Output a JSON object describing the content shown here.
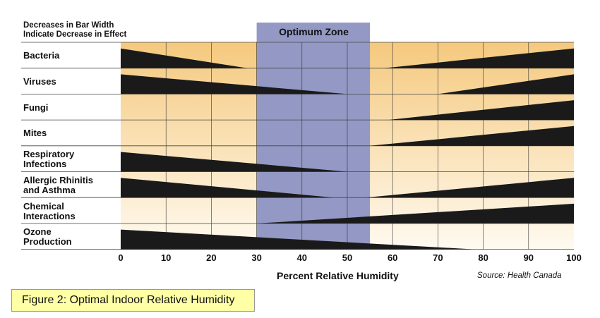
{
  "note": [
    "Decreases in Bar Width",
    "Indicate Decrease in Effect"
  ],
  "zone_label": "Optimum Zone",
  "x_label": "Percent Relative Humidity",
  "source": "Source: Health Canada",
  "caption": "Figure 2:  Optimal Indoor Relative Humidity",
  "colors": {
    "wedge": "#1a1a1a",
    "zone": "#9399c4",
    "band_dark": "#f5c97e",
    "band_light": "#fffaf0",
    "gridline": "#333333"
  },
  "chart_data": {
    "type": "bar",
    "title": "",
    "xlabel": "Percent Relative Humidity",
    "xlim": [
      0,
      100
    ],
    "xticks": [
      "0",
      "10",
      "20",
      "30",
      "40",
      "50",
      "60",
      "70",
      "80",
      "90",
      "100"
    ],
    "optimum_zone": [
      30,
      55
    ],
    "categories": [
      {
        "label": "Bacteria",
        "low_end": 28,
        "high_start": 58
      },
      {
        "label": "Viruses",
        "low_end": 50,
        "high_start": 70
      },
      {
        "label": "Fungi",
        "low_end": null,
        "high_start": 59
      },
      {
        "label": "Mites",
        "low_end": null,
        "high_start": 55
      },
      {
        "label": "Respiratory\nInfections",
        "low_end": 50,
        "high_start": null
      },
      {
        "label": "Allergic Rhinitis\nand Asthma",
        "low_end": 47,
        "high_start": 54
      },
      {
        "label": "Chemical\nInteractions",
        "low_end": null,
        "high_start": 30
      },
      {
        "label": "Ozone\nProduction",
        "low_end": 78,
        "high_start": null
      }
    ]
  }
}
